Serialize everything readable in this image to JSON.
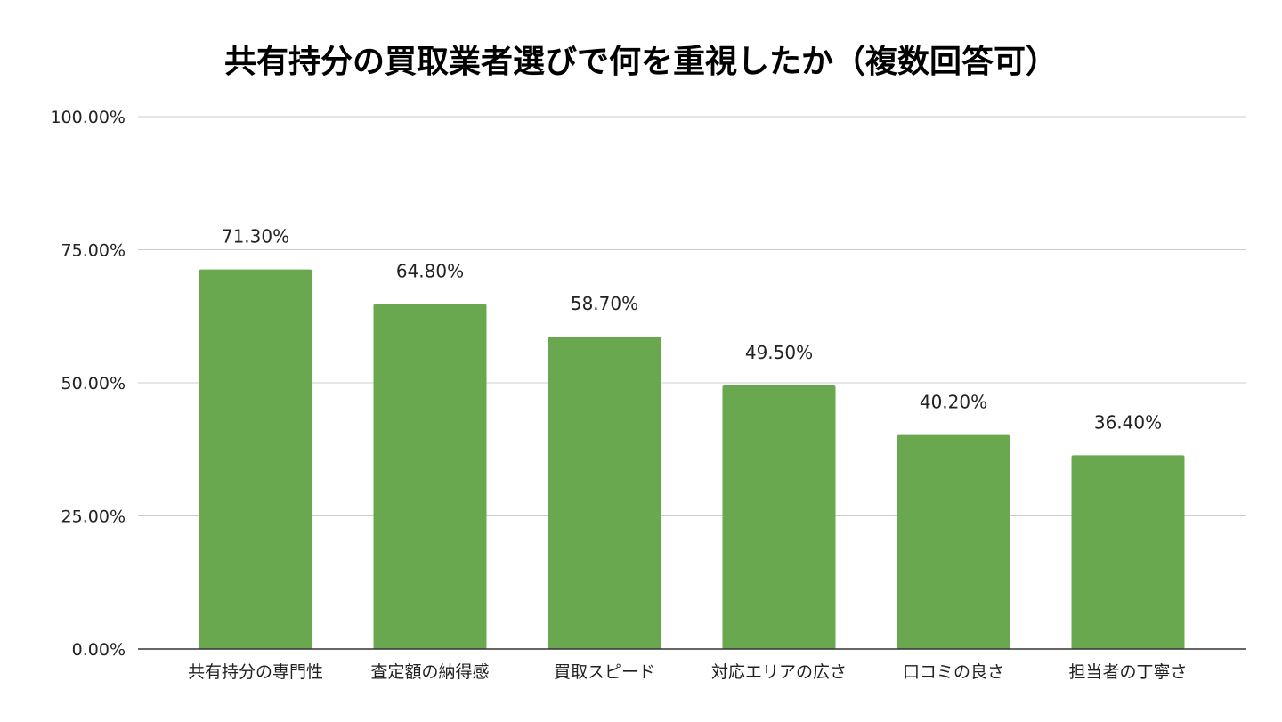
{
  "chart_data": {
    "type": "bar",
    "title": "共有持分の買取業者選びで何を重視したか（複数回答可）",
    "xlabel": "",
    "ylabel": "",
    "categories": [
      "共有持分の専門性",
      "査定額の納得感",
      "買取スピード",
      "対応エリアの広さ",
      "口コミの良さ",
      "担当者の丁寧さ"
    ],
    "values": [
      71.3,
      64.8,
      58.7,
      49.5,
      40.2,
      36.4
    ],
    "value_labels": [
      "71.30%",
      "64.80%",
      "58.70%",
      "49.50%",
      "40.20%",
      "36.40%"
    ],
    "ylim": [
      0,
      100
    ],
    "yticks": [
      0,
      25,
      50,
      75,
      100
    ],
    "ytick_labels": [
      "0.00%",
      "25.00%",
      "50.00%",
      "75.00%",
      "100.00%"
    ],
    "grid": true,
    "legend": "none",
    "colors": {
      "bar": "#6aa84f",
      "grid": "#cccccc",
      "axis": "#333333",
      "text": "#222222"
    }
  }
}
